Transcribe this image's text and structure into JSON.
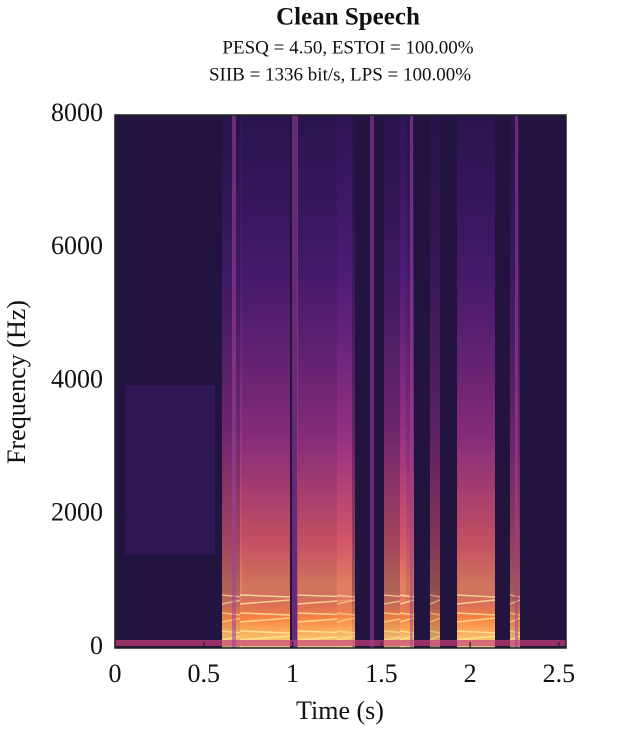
{
  "chart_data": {
    "type": "spectrogram",
    "title": "Clean Speech",
    "subtitle": [
      "PESQ = 4.50, ESTOI = 100.00%",
      "SIIB = 1336 bit/s, LPS = 100.00%"
    ],
    "x_label": "Time (s)",
    "y_label": "Frequency (Hz)",
    "xlim": [
      0,
      2.54
    ],
    "xticks": [
      0,
      0.5,
      1,
      1.5,
      2,
      2.5
    ],
    "ylim": [
      0,
      8000
    ],
    "yticks": [
      0,
      2000,
      4000,
      6000,
      8000
    ],
    "colormap": "magma"
  }
}
